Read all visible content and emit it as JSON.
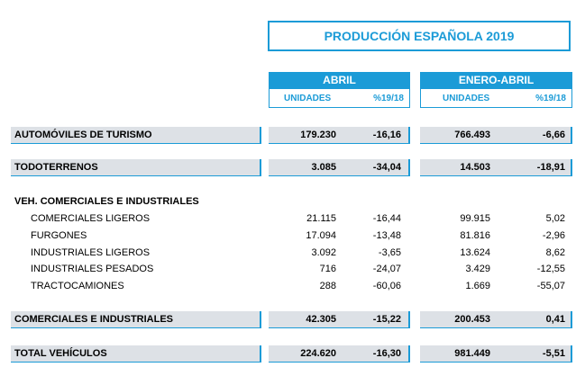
{
  "title": "PRODUCCIÓN ESPAÑOLA 2019",
  "groups": {
    "abril": "ABRIL",
    "enero_abril": "ENERO-ABRIL"
  },
  "subheads": {
    "unidades": "UNIDADES",
    "pct": "%19/18"
  },
  "rows": {
    "turismo": {
      "label": "AUTOMÓVILES DE TURISMO",
      "u1": "179.230",
      "p1": "-16,16",
      "u2": "766.493",
      "p2": "-6,66"
    },
    "todo": {
      "label": "TODOTERRENOS",
      "u1": "3.085",
      "p1": "-34,04",
      "u2": "14.503",
      "p2": "-18,91"
    },
    "veh_title": {
      "label": "VEH. COMERCIALES E INDUSTRIALES"
    },
    "com_lig": {
      "label": "COMERCIALES LIGEROS",
      "u1": "21.115",
      "p1": "-16,44",
      "u2": "99.915",
      "p2": "5,02"
    },
    "furg": {
      "label": "FURGONES",
      "u1": "17.094",
      "p1": "-13,48",
      "u2": "81.816",
      "p2": "-2,96"
    },
    "ind_lig": {
      "label": "INDUSTRIALES LIGEROS",
      "u1": "3.092",
      "p1": "-3,65",
      "u2": "13.624",
      "p2": "8,62"
    },
    "ind_pes": {
      "label": "INDUSTRIALES PESADOS",
      "u1": "716",
      "p1": "-24,07",
      "u2": "3.429",
      "p2": "-12,55"
    },
    "tract": {
      "label": "TRACTOCAMIONES",
      "u1": "288",
      "p1": "-60,06",
      "u2": "1.669",
      "p2": "-55,07"
    },
    "com_ind": {
      "label": "COMERCIALES E INDUSTRIALES",
      "u1": "42.305",
      "p1": "-15,22",
      "u2": "200.453",
      "p2": "0,41"
    },
    "total": {
      "label": "TOTAL VEHÍCULOS",
      "u1": "224.620",
      "p1": "-16,30",
      "u2": "981.449",
      "p2": "-5,51"
    }
  },
  "colors": {
    "accent": "#1b9bd7",
    "bar": "#dde1e6"
  }
}
